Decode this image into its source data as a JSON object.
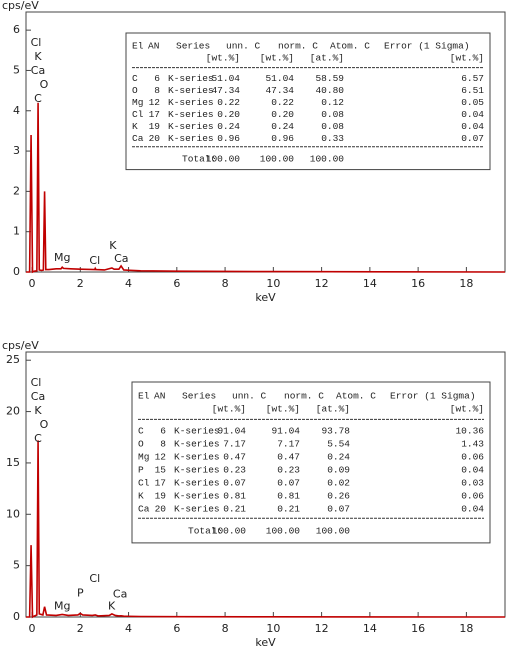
{
  "chart_data": [
    {
      "type": "line",
      "y_label": "cps/eV",
      "x_label": "keV",
      "color": "#c00000",
      "x": [
        -0.25,
        -0.1,
        -0.04,
        0.02,
        0.1,
        0.2,
        0.25,
        0.3,
        0.4,
        0.47,
        0.52,
        0.57,
        0.7,
        1.0,
        1.2,
        1.25,
        1.3,
        1.6,
        2.0,
        2.6,
        2.62,
        2.65,
        3.0,
        3.31,
        3.4,
        3.6,
        3.69,
        3.8,
        4.5,
        6,
        10,
        19.6
      ],
      "values": [
        0,
        0,
        3.4,
        0,
        0.02,
        0.03,
        4.2,
        0.05,
        0.04,
        0.05,
        2.0,
        0.06,
        0.06,
        0.08,
        0.08,
        0.12,
        0.09,
        0.08,
        0.07,
        0.06,
        0.09,
        0.06,
        0.05,
        0.1,
        0.07,
        0.07,
        0.15,
        0.05,
        0.03,
        0.02,
        0.01,
        0
      ],
      "xlim": [
        -0.25,
        19.6
      ],
      "ylim": [
        0,
        6.45
      ],
      "xticks": [
        0,
        2,
        4,
        6,
        8,
        10,
        12,
        14,
        16,
        18
      ],
      "yticks": [
        0,
        1,
        2,
        3,
        4,
        5,
        6
      ],
      "stack_labels": [
        "Cl",
        "K",
        "Ca",
        "O",
        "C"
      ],
      "peak_labels": [
        {
          "text": "Mg",
          "x": 1.25,
          "y": 0.35
        },
        {
          "text": "Cl",
          "x": 2.6,
          "y": 0.27
        },
        {
          "text": "K",
          "x": 3.35,
          "y": 0.65
        },
        {
          "text": "Ca",
          "x": 3.7,
          "y": 0.32
        }
      ],
      "table": {
        "columns": [
          "El",
          "AN",
          "Series",
          "unn. C",
          "norm. C",
          "Atom. C",
          "Error (1 Sigma)"
        ],
        "units": [
          "[wt.%]",
          "[wt.%]",
          "[at.%]",
          "[wt.%]"
        ],
        "rows": [
          [
            "C",
            "6",
            "K-series",
            "51.04",
            "51.04",
            "58.59",
            "6.57"
          ],
          [
            "O",
            "8",
            "K-series",
            "47.34",
            "47.34",
            "40.80",
            "6.51"
          ],
          [
            "Mg",
            "12",
            "K-series",
            "0.22",
            "0.22",
            "0.12",
            "0.05"
          ],
          [
            "Cl",
            "17",
            "K-series",
            "0.20",
            "0.20",
            "0.08",
            "0.04"
          ],
          [
            "K",
            "19",
            "K-series",
            "0.24",
            "0.24",
            "0.08",
            "0.04"
          ],
          [
            "Ca",
            "20",
            "K-series",
            "0.96",
            "0.96",
            "0.33",
            "0.07"
          ]
        ],
        "total_label": "Total:",
        "total": [
          "100.00",
          "100.00",
          "100.00"
        ]
      }
    },
    {
      "type": "line",
      "y_label": "cps/eV",
      "x_label": "keV",
      "color": "#c00000",
      "x": [
        -0.25,
        -0.1,
        -0.04,
        0.02,
        0.1,
        0.2,
        0.25,
        0.3,
        0.45,
        0.52,
        0.6,
        1.0,
        1.25,
        1.5,
        1.9,
        2.0,
        2.1,
        2.5,
        2.62,
        2.75,
        3.2,
        3.31,
        3.45,
        3.6,
        3.69,
        3.8,
        4.5,
        6,
        10,
        19.6
      ],
      "values": [
        0,
        0,
        7.0,
        0,
        0.1,
        0.2,
        17.2,
        0.3,
        0.2,
        1.0,
        0.2,
        0.15,
        0.25,
        0.15,
        0.2,
        0.35,
        0.2,
        0.15,
        0.2,
        0.1,
        0.15,
        0.3,
        0.15,
        0.1,
        0.12,
        0.08,
        0.05,
        0.03,
        0.02,
        0
      ],
      "xlim": [
        -0.25,
        19.6
      ],
      "ylim": [
        0,
        25.8
      ],
      "xticks": [
        0,
        2,
        4,
        6,
        8,
        10,
        12,
        14,
        16,
        18
      ],
      "yticks": [
        0,
        5,
        10,
        15,
        20,
        25
      ],
      "stack_labels": [
        "Cl",
        "Ca",
        "K",
        "O",
        "C"
      ],
      "peak_labels": [
        {
          "text": "Mg",
          "x": 1.25,
          "y": 1.0
        },
        {
          "text": "P",
          "x": 2.0,
          "y": 2.3
        },
        {
          "text": "Cl",
          "x": 2.6,
          "y": 3.7
        },
        {
          "text": "Ca",
          "x": 3.65,
          "y": 2.2
        },
        {
          "text": "K",
          "x": 3.3,
          "y": 1.0
        }
      ],
      "table": {
        "columns": [
          "El",
          "AN",
          "Series",
          "unn. C",
          "norm. C",
          "Atom. C",
          "Error (1 Sigma)"
        ],
        "units": [
          "[wt.%]",
          "[wt.%]",
          "[at.%]",
          "[wt.%]"
        ],
        "rows": [
          [
            "C",
            "6",
            "K-series",
            "91.04",
            "91.04",
            "93.78",
            "10.36"
          ],
          [
            "O",
            "8",
            "K-series",
            "7.17",
            "7.17",
            "5.54",
            "1.43"
          ],
          [
            "Mg",
            "12",
            "K-series",
            "0.47",
            "0.47",
            "0.24",
            "0.06"
          ],
          [
            "P",
            "15",
            "K-series",
            "0.23",
            "0.23",
            "0.09",
            "0.04"
          ],
          [
            "Cl",
            "17",
            "K-series",
            "0.07",
            "0.07",
            "0.02",
            "0.03"
          ],
          [
            "K",
            "19",
            "K-series",
            "0.81",
            "0.81",
            "0.26",
            "0.06"
          ],
          [
            "Ca",
            "20",
            "K-series",
            "0.21",
            "0.21",
            "0.07",
            "0.04"
          ]
        ],
        "total_label": "Total:",
        "total": [
          "100.00",
          "100.00",
          "100.00"
        ]
      }
    }
  ]
}
